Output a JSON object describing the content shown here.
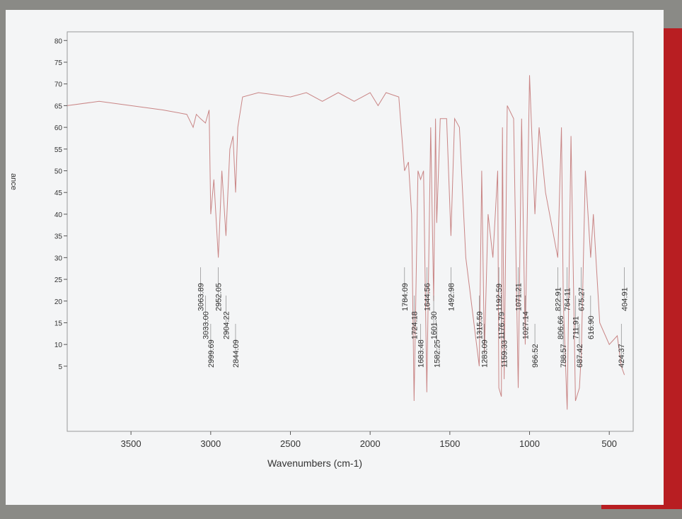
{
  "chart_data": {
    "type": "line",
    "xlabel": "Wavenumbers (cm-1)",
    "ylabel": "ance",
    "color": "#c98585",
    "xlim": [
      3900,
      350
    ],
    "xticks": [
      3500,
      3000,
      2500,
      2000,
      1500,
      1000,
      500
    ],
    "ylim": [
      -10,
      82
    ],
    "yticks": [
      5,
      10,
      15,
      20,
      25,
      30,
      35,
      40,
      45,
      50,
      55,
      60,
      65,
      70,
      75,
      80
    ],
    "x": [
      3900,
      3700,
      3500,
      3300,
      3150,
      3110,
      3090,
      3063.89,
      3033.0,
      3010,
      2999.69,
      2980,
      2952.05,
      2930,
      2904.22,
      2880,
      2860,
      2844.09,
      2830,
      2800,
      2700,
      2500,
      2400,
      2300,
      2200,
      2100,
      2000,
      1950,
      1900,
      1820,
      1784.09,
      1760,
      1740,
      1724.18,
      1700,
      1683.48,
      1665,
      1644.56,
      1620,
      1601.3,
      1590,
      1582.25,
      1560,
      1520,
      1492.98,
      1470,
      1440,
      1400,
      1315.59,
      1300,
      1283.09,
      1260,
      1230,
      1200,
      1192.59,
      1176.79,
      1170,
      1159.33,
      1140,
      1100,
      1071.21,
      1050,
      1027.14,
      1000,
      966.52,
      940,
      900,
      822.91,
      800,
      788.57,
      764.11,
      740,
      711.91,
      687.42,
      675.27,
      650,
      616.9,
      600,
      560,
      500,
      450,
      424.37,
      404.91
    ],
    "values": [
      65,
      66,
      65,
      64,
      63,
      60,
      63,
      62,
      61,
      64,
      40,
      48,
      30,
      50,
      35,
      55,
      58,
      45,
      60,
      67,
      68,
      67,
      68,
      66,
      68,
      66,
      68,
      65,
      68,
      67,
      50,
      52,
      40,
      -3,
      50,
      48,
      50,
      -1,
      60,
      20,
      62,
      38,
      62,
      62,
      35,
      62,
      60,
      30,
      5,
      50,
      8,
      40,
      30,
      50,
      0,
      -2,
      60,
      2,
      65,
      62,
      0,
      62,
      10,
      72,
      40,
      60,
      45,
      30,
      60,
      20,
      -5,
      58,
      -3,
      0,
      8,
      50,
      30,
      40,
      15,
      10,
      12,
      5,
      3
    ],
    "peaks": [
      {
        "x": 3063.89,
        "label": "3063.89"
      },
      {
        "x": 3033.0,
        "label": "3033.00"
      },
      {
        "x": 2999.69,
        "label": "2999.69"
      },
      {
        "x": 2952.05,
        "label": "2952.05"
      },
      {
        "x": 2904.22,
        "label": "2904.22"
      },
      {
        "x": 2844.09,
        "label": "2844.09"
      },
      {
        "x": 1784.09,
        "label": "1784.09"
      },
      {
        "x": 1724.18,
        "label": "1724.18"
      },
      {
        "x": 1683.48,
        "label": "1683.48"
      },
      {
        "x": 1644.56,
        "label": "1644.56"
      },
      {
        "x": 1601.3,
        "label": "1601.30"
      },
      {
        "x": 1582.25,
        "label": "1582.25"
      },
      {
        "x": 1492.98,
        "label": "1492.98"
      },
      {
        "x": 1315.59,
        "label": "1315.59"
      },
      {
        "x": 1283.09,
        "label": "1283.09"
      },
      {
        "x": 1192.59,
        "label": "1192.59"
      },
      {
        "x": 1176.79,
        "label": "1176.79"
      },
      {
        "x": 1159.33,
        "label": "1159.33"
      },
      {
        "x": 1071.21,
        "label": "1071.21"
      },
      {
        "x": 1027.14,
        "label": "1027.14"
      },
      {
        "x": 966.52,
        "label": "966.52"
      },
      {
        "x": 822.91,
        "label": "822.91"
      },
      {
        "x": 806.66,
        "label": "806.66"
      },
      {
        "x": 788.57,
        "label": "788.57"
      },
      {
        "x": 764.11,
        "label": "764.11"
      },
      {
        "x": 711.91,
        "label": "711.91"
      },
      {
        "x": 687.42,
        "label": "687.42"
      },
      {
        "x": 675.27,
        "label": "675.27"
      },
      {
        "x": 616.9,
        "label": "616.90"
      },
      {
        "x": 424.37,
        "label": "424.37"
      },
      {
        "x": 404.91,
        "label": "404.91"
      }
    ]
  }
}
